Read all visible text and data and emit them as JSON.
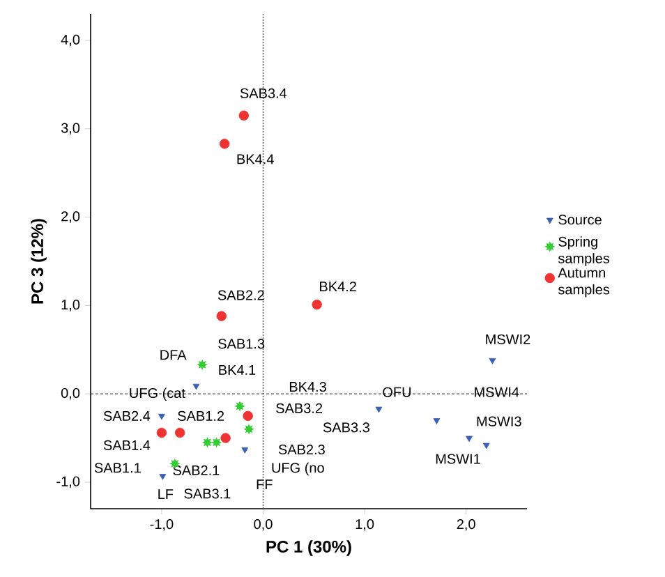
{
  "chart_data": {
    "type": "scatter",
    "xlabel": "PC 1 (30%)",
    "ylabel": "PC 3 (12%)",
    "xlim": [
      -1.7,
      2.6
    ],
    "ylim": [
      -1.3,
      4.3
    ],
    "xticks": [
      {
        "value": -1,
        "label": "-1,0"
      },
      {
        "value": 0,
        "label": "0,0"
      },
      {
        "value": 1,
        "label": "1,0"
      },
      {
        "value": 2,
        "label": "2,0"
      }
    ],
    "yticks": [
      {
        "value": -1,
        "label": "-1,0"
      },
      {
        "value": 0,
        "label": "0,0"
      },
      {
        "value": 1,
        "label": "1,0"
      },
      {
        "value": 2,
        "label": "2,0"
      },
      {
        "value": 3,
        "label": "3,0"
      },
      {
        "value": 4,
        "label": "4,0"
      }
    ],
    "legend": "right",
    "series": [
      {
        "name": "Source",
        "color": "#3a5fb5",
        "marker": "triangle",
        "x": [
          -0.66,
          -1.0,
          -0.99,
          -0.18,
          1.14,
          2.26,
          1.71,
          2.03,
          2.2
        ],
        "values": [
          0.09,
          -0.25,
          -0.93,
          -0.63,
          -0.17,
          0.38,
          -0.3,
          -0.5,
          -0.58
        ]
      },
      {
        "name": "Spring samples",
        "color": "#33cc33",
        "marker": "star",
        "x": [
          -0.6,
          -0.23,
          -0.14,
          -0.55,
          -0.46,
          -0.87
        ],
        "values": [
          0.33,
          -0.14,
          -0.4,
          -0.55,
          -0.55,
          -0.79
        ]
      },
      {
        "name": "Autumn samples",
        "color": "#ee3333",
        "marker": "circle",
        "x": [
          -0.41,
          -0.19,
          -0.38,
          0.53,
          -0.15,
          -1.0,
          -0.82,
          -0.37
        ],
        "values": [
          0.88,
          3.15,
          2.83,
          1.01,
          -0.25,
          -0.44,
          -0.44,
          -0.5
        ]
      }
    ],
    "ref_lines": [
      {
        "axis": "x",
        "value": 0,
        "line_style": "dotted"
      },
      {
        "axis": "y",
        "value": 0,
        "line_style": "dashed"
      }
    ],
    "annotations": [
      {
        "text": "SAB3.4",
        "x": -0.19,
        "y": 3.15
      },
      {
        "text": "BK4.4",
        "x": -0.38,
        "y": 2.83
      },
      {
        "text": "SAB2.2",
        "x": -0.41,
        "y": 0.88
      },
      {
        "text": "BK4.2",
        "x": 0.53,
        "y": 1.01
      },
      {
        "text": "SAB1.3",
        "x": -0.6,
        "y": 0.33
      },
      {
        "text": "DFA",
        "x": -0.6,
        "y": 0.33
      },
      {
        "text": "BK4.1",
        "x": -0.23,
        "y": -0.14
      },
      {
        "text": "UFG (cat",
        "x": -0.66,
        "y": 0.09
      },
      "BK4.3",
      {
        "text": "SAB3.2",
        "x": -0.14,
        "y": -0.4
      },
      {
        "text": "OFU",
        "x": 1.14,
        "y": -0.17
      },
      "MSWI4",
      {
        "text": "MSWI2",
        "x": 2.26,
        "y": 0.38
      },
      {
        "text": "MSWI3",
        "x": 2.2,
        "y": -0.58
      },
      {
        "text": "MSWI1",
        "x": 2.03,
        "y": -0.5
      },
      "SAB3.3",
      {
        "text": "SAB2.4",
        "x": -1.0,
        "y": -0.44
      },
      {
        "text": "SAB1.2",
        "x": -0.82,
        "y": -0.44
      },
      {
        "text": "SAB1.4",
        "x": -1.0,
        "y": -0.44
      },
      {
        "text": "SAB1.1",
        "x": -0.87,
        "y": -0.79
      },
      "SAB2.3",
      {
        "text": "SAB2.1",
        "x": -0.55,
        "y": -0.55
      },
      {
        "text": "UFG (no",
        "x": -0.18,
        "y": -0.63
      },
      {
        "text": "LF",
        "x": -0.99,
        "y": -0.93
      },
      "SAB3.1",
      {
        "text": "FF",
        "x": -0.18,
        "y": -0.63
      }
    ]
  }
}
